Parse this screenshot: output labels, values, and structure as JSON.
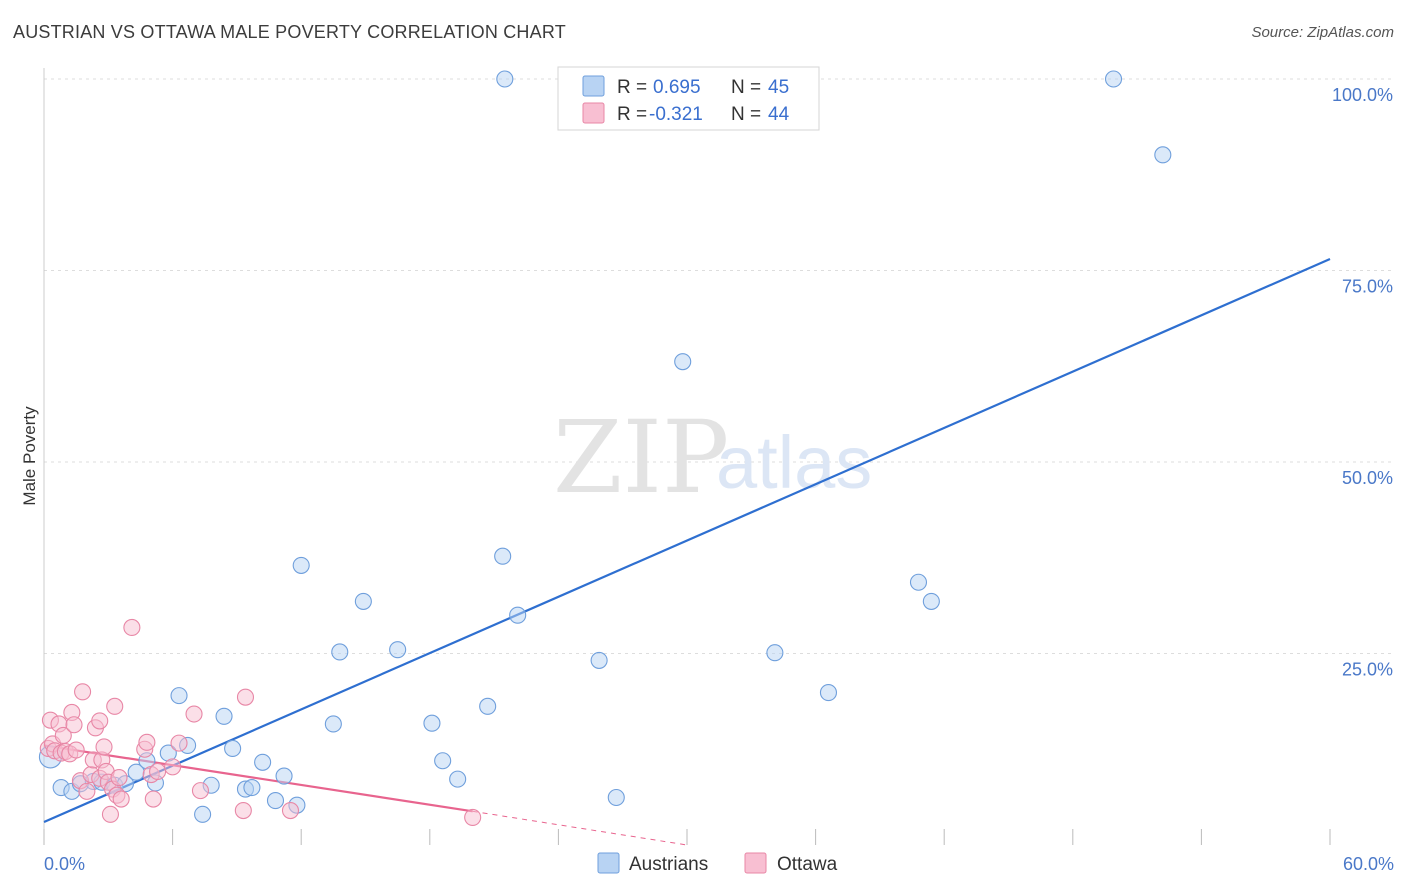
{
  "header": {
    "title": "AUSTRIAN VS OTTAWA MALE POVERTY CORRELATION CHART",
    "source": "Source: ZipAtlas.com"
  },
  "colors": {
    "austrians_fill": "#b8d3f3",
    "austrians_stroke": "#6f9fdc",
    "austrians_line": "#2e6fd0",
    "ottawa_fill": "#f8bfd2",
    "ottawa_stroke": "#e887a6",
    "ottawa_line": "#e8648e",
    "tick_label": "#4a78c8",
    "grid": "#dddddd"
  },
  "legend_stats": {
    "r_label": "R =",
    "n_label": "N =",
    "austrians_r": "0.695",
    "austrians_n": "45",
    "ottawa_r": "-0.321",
    "ottawa_n": "44"
  },
  "watermark": {
    "zip": "ZIP",
    "atlas": "atlas"
  },
  "chart_data": {
    "type": "scatter",
    "title": "AUSTRIAN VS OTTAWA MALE POVERTY CORRELATION CHART",
    "xlabel": "",
    "ylabel": "Male Poverty",
    "xlim": [
      0,
      60
    ],
    "ylim": [
      0,
      100
    ],
    "x_tick_labels": {
      "min": "0.0%",
      "max": "60.0%"
    },
    "y_ticks": [
      {
        "value": 25,
        "label": "25.0%"
      },
      {
        "value": 50,
        "label": "50.0%"
      },
      {
        "value": 75,
        "label": "75.0%"
      },
      {
        "value": 100,
        "label": "100.0%"
      }
    ],
    "legend": [
      "Austrians",
      "Ottawa"
    ],
    "legend_position": "bottom-center",
    "grid": true,
    "series": [
      {
        "name": "Austrians",
        "trend": {
          "x0": 0,
          "y0": 3,
          "x1": 60,
          "y1": 76.5
        },
        "points": [
          [
            0.3,
            11.5
          ],
          [
            0.8,
            7.5
          ],
          [
            1.3,
            7.0
          ],
          [
            1.7,
            8.0
          ],
          [
            2.3,
            8.3
          ],
          [
            2.7,
            8.2
          ],
          [
            3.3,
            7.8
          ],
          [
            3.8,
            8.0
          ],
          [
            4.3,
            9.5
          ],
          [
            4.8,
            11.0
          ],
          [
            5.2,
            8.1
          ],
          [
            5.8,
            12.0
          ],
          [
            6.3,
            19.5
          ],
          [
            6.7,
            13.0
          ],
          [
            7.4,
            4.0
          ],
          [
            7.8,
            7.8
          ],
          [
            8.4,
            16.8
          ],
          [
            8.8,
            12.6
          ],
          [
            9.4,
            7.3
          ],
          [
            9.7,
            7.5
          ],
          [
            10.2,
            10.8
          ],
          [
            10.8,
            5.8
          ],
          [
            11.2,
            9.0
          ],
          [
            11.8,
            5.2
          ],
          [
            12.0,
            36.5
          ],
          [
            13.5,
            15.8
          ],
          [
            13.8,
            25.2
          ],
          [
            14.9,
            31.8
          ],
          [
            16.5,
            25.5
          ],
          [
            18.1,
            15.9
          ],
          [
            18.6,
            11.0
          ],
          [
            19.3,
            8.6
          ],
          [
            20.7,
            18.1
          ],
          [
            21.4,
            37.7
          ],
          [
            21.5,
            100.0
          ],
          [
            22.1,
            30.0
          ],
          [
            25.9,
            24.1
          ],
          [
            26.7,
            6.2
          ],
          [
            29.8,
            63.1
          ],
          [
            34.1,
            25.1
          ],
          [
            36.6,
            19.9
          ],
          [
            40.8,
            34.3
          ],
          [
            41.4,
            31.8
          ],
          [
            49.9,
            100.0
          ],
          [
            52.2,
            90.1
          ]
        ]
      },
      {
        "name": "Ottawa",
        "trend": {
          "x0": 0,
          "y0": 13.0,
          "x1": 20,
          "y1": 4.4
        },
        "trend_dashed_to": {
          "x": 30,
          "y": 0
        },
        "points": [
          [
            0.2,
            12.6
          ],
          [
            0.3,
            16.3
          ],
          [
            0.4,
            13.2
          ],
          [
            0.5,
            12.3
          ],
          [
            0.7,
            15.8
          ],
          [
            0.8,
            12.0
          ],
          [
            0.9,
            14.3
          ],
          [
            1.0,
            12.2
          ],
          [
            1.2,
            11.9
          ],
          [
            1.3,
            17.3
          ],
          [
            1.4,
            15.7
          ],
          [
            1.5,
            12.4
          ],
          [
            1.7,
            8.4
          ],
          [
            1.8,
            20.0
          ],
          [
            2.0,
            7.0
          ],
          [
            2.2,
            9.2
          ],
          [
            2.3,
            11.1
          ],
          [
            2.4,
            15.3
          ],
          [
            2.6,
            8.7
          ],
          [
            2.7,
            11.1
          ],
          [
            2.6,
            16.2
          ],
          [
            2.8,
            12.8
          ],
          [
            2.9,
            9.6
          ],
          [
            3.0,
            8.2
          ],
          [
            3.1,
            4.0
          ],
          [
            3.2,
            7.3
          ],
          [
            3.3,
            18.1
          ],
          [
            3.4,
            6.5
          ],
          [
            3.5,
            8.8
          ],
          [
            3.6,
            6.0
          ],
          [
            4.1,
            28.4
          ],
          [
            4.7,
            12.5
          ],
          [
            4.8,
            13.4
          ],
          [
            5.0,
            9.2
          ],
          [
            5.1,
            6.0
          ],
          [
            5.3,
            9.6
          ],
          [
            6.0,
            10.2
          ],
          [
            6.3,
            13.3
          ],
          [
            7.0,
            17.1
          ],
          [
            7.3,
            7.1
          ],
          [
            9.3,
            4.5
          ],
          [
            9.4,
            19.3
          ],
          [
            11.5,
            4.5
          ],
          [
            20.0,
            3.6
          ]
        ]
      }
    ]
  }
}
